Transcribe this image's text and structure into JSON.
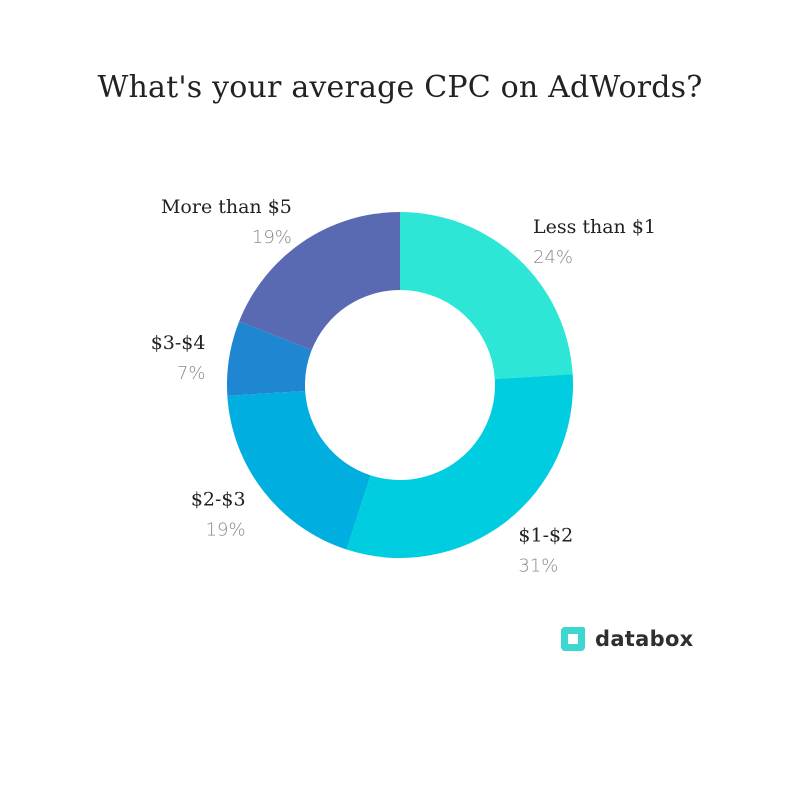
{
  "chart_data": {
    "type": "pie",
    "variant": "donut",
    "title": "What's your average CPC on AdWords?",
    "categories": [
      "Less than $1",
      "$1-$2",
      "$2-$3",
      "$3-$4",
      "More than $5"
    ],
    "values": [
      24,
      31,
      19,
      7,
      19
    ],
    "value_labels": [
      "24%",
      "31%",
      "19%",
      "7%",
      "19%"
    ],
    "colors": [
      "#2ee6d6",
      "#00cde0",
      "#00aee0",
      "#1f87d1",
      "#5a6ab2"
    ],
    "start_angle_deg": 0,
    "direction": "clockwise",
    "legend": "none"
  },
  "brand": {
    "name": "databox",
    "icon": "databox-logo-icon",
    "color": "#3dd6d0"
  }
}
